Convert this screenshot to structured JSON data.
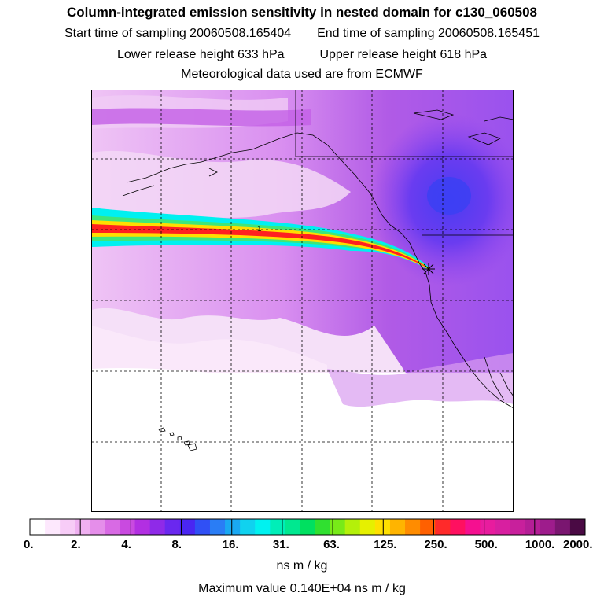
{
  "header": {
    "title": "Column-integrated emission sensitivity in nested domain for c130_060508",
    "start_label": "Start time of sampling",
    "start_value": "20060508.165404",
    "end_label": "End time of sampling",
    "end_value": "20060508.165451",
    "lower_label": "Lower release height",
    "lower_value": "633 hPa",
    "upper_label": "Upper release height",
    "upper_value": "618 hPa",
    "met_line": "Meteorological data used are from ECMWF"
  },
  "map": {
    "plume_contour_label": "1",
    "release_marker_icon": "star-marker-icon"
  },
  "colorbar": {
    "tick_labels": [
      "0.",
      "2.",
      "4.",
      "8.",
      "16.",
      "31.",
      "63.",
      "125.",
      "250.",
      "500.",
      "1000.",
      "2000."
    ],
    "colors": [
      "#ffffff",
      "#fde8fd",
      "#f7ccf7",
      "#efb0f1",
      "#e58eea",
      "#d86ae4",
      "#c94ae0",
      "#b22fe2",
      "#8f2ae8",
      "#6a28ef",
      "#4a26f2",
      "#3050f5",
      "#2a7df5",
      "#1aa8f2",
      "#10d2ef",
      "#00f2f0",
      "#00eeb8",
      "#00e890",
      "#00e060",
      "#30e030",
      "#78ea18",
      "#b4f00a",
      "#e6f000",
      "#ffe000",
      "#ffb400",
      "#ff8c00",
      "#ff6000",
      "#ff2a2a",
      "#ff1060",
      "#f51090",
      "#e81c9e",
      "#d81fa0",
      "#c8209c",
      "#b41e96",
      "#9e1c8c",
      "#7a1670",
      "#4a0a44"
    ],
    "units": "ns m / kg",
    "max_label": "Maximum value",
    "max_value": "0.140E+04",
    "max_units": "ns m / kg"
  },
  "colors": {
    "frame": "#000000",
    "plume_red": "#ff2020",
    "plume_yellow": "#ffdd00",
    "plume_cyan": "#00f0f0",
    "ocean_violet": "#b84ff0",
    "pale_violet": "#f2d6f7"
  }
}
